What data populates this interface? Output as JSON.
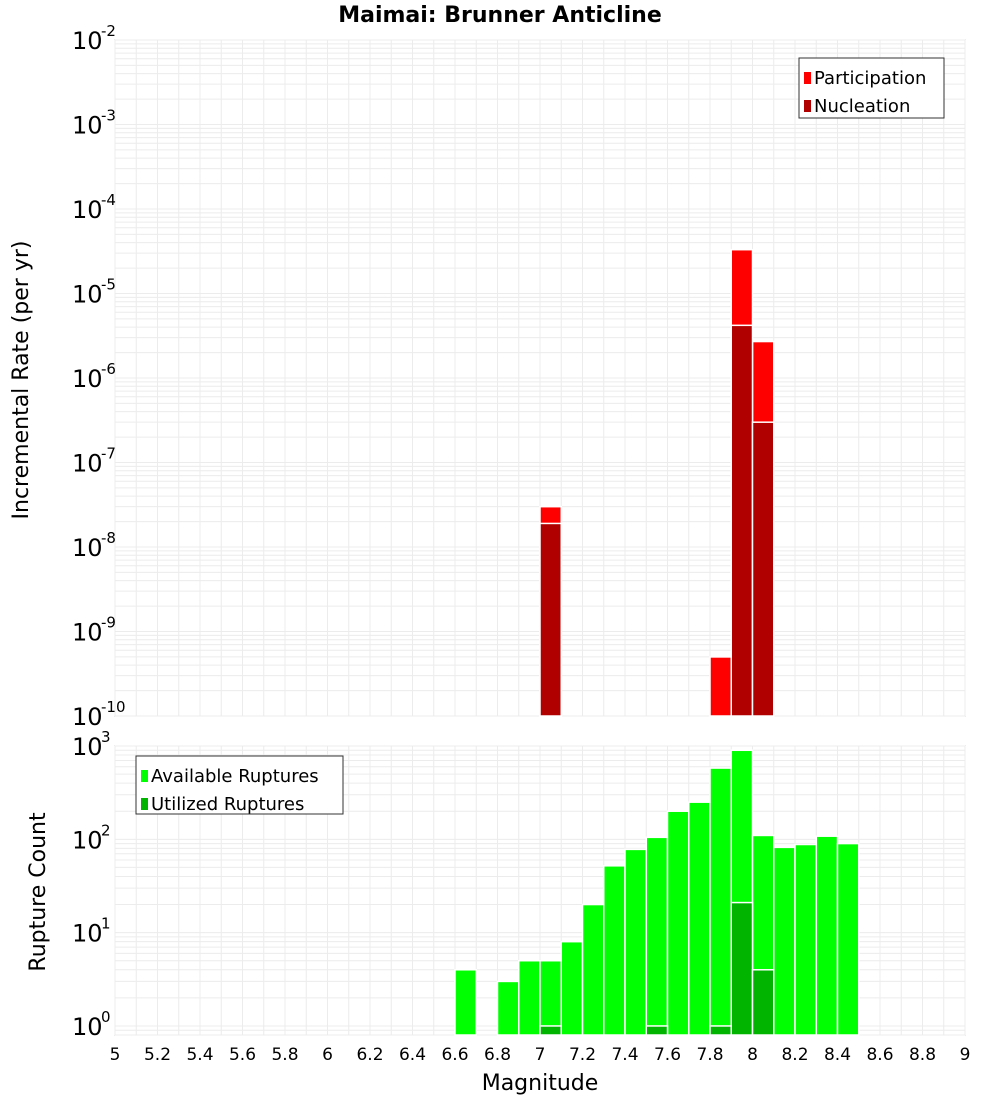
{
  "chart_data": [
    {
      "id": "top",
      "type": "bar",
      "title": "Maimai: Brunner Anticline",
      "ylabel": "Incremental Rate (per yr)",
      "xlabel": "",
      "y_scale": "log",
      "ylim": [
        1e-10,
        0.01
      ],
      "xlim": [
        5,
        9
      ],
      "bin_width": 0.1,
      "y_tick_exponents": [
        -10,
        -9,
        -8,
        -7,
        -6,
        -5,
        -4,
        -3,
        -2
      ],
      "legend": {
        "position": "top-right",
        "entries": [
          "Participation",
          "Nucleation"
        ]
      },
      "series": [
        {
          "name": "Participation",
          "color": "#ff0000",
          "x": [
            7.05,
            7.85,
            7.95,
            8.05
          ],
          "values": [
            3e-08,
            5e-10,
            3.3e-05,
            2.7e-06
          ]
        },
        {
          "name": "Nucleation",
          "color": "#b00000",
          "x": [
            7.05,
            7.95,
            8.05
          ],
          "values": [
            1.9e-08,
            4.2e-06,
            3e-07
          ]
        }
      ]
    },
    {
      "id": "bottom",
      "type": "bar",
      "title": "",
      "ylabel": "Rupture Count",
      "xlabel": "Magnitude",
      "y_scale": "log",
      "ylim": [
        0.8,
        1000
      ],
      "xlim": [
        5,
        9
      ],
      "bin_width": 0.1,
      "y_tick_exponents": [
        0,
        1,
        2,
        3
      ],
      "x_ticks": [
        "5",
        "5.2",
        "5.4",
        "5.6",
        "5.8",
        "6",
        "6.2",
        "6.4",
        "6.6",
        "6.8",
        "7",
        "7.2",
        "7.4",
        "7.6",
        "7.8",
        "8",
        "8.2",
        "8.4",
        "8.6",
        "8.8",
        "9"
      ],
      "legend": {
        "position": "top-left",
        "entries": [
          "Available Ruptures",
          "Utilized Ruptures"
        ]
      },
      "series": [
        {
          "name": "Available Ruptures",
          "color": "#00ff00",
          "x": [
            6.65,
            6.85,
            6.95,
            7.05,
            7.15,
            7.25,
            7.35,
            7.45,
            7.55,
            7.65,
            7.75,
            7.85,
            7.95,
            8.05,
            8.15,
            8.25,
            8.35,
            8.45
          ],
          "values": [
            4,
            3,
            5,
            5,
            8,
            20,
            52,
            78,
            105,
            200,
            250,
            580,
            900,
            110,
            82,
            88,
            108,
            90
          ]
        },
        {
          "name": "Utilized Ruptures",
          "color": "#00b400",
          "x": [
            7.05,
            7.55,
            7.85,
            7.95,
            8.05
          ],
          "values": [
            1,
            1,
            1,
            21,
            4
          ]
        }
      ]
    }
  ]
}
